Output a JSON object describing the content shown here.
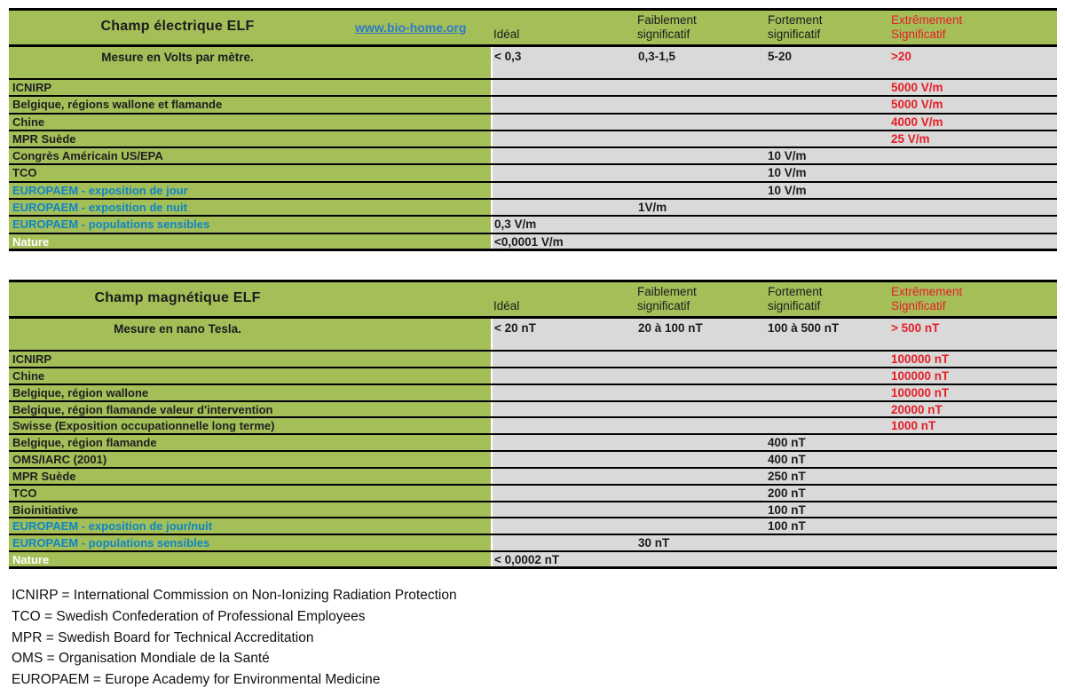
{
  "colors": {
    "header_green": "#A4BE58",
    "cell_gray": "#D9D9D9",
    "alert_red": "#E61E28",
    "europaem_blue": "#0E86C5",
    "link_blue": "#2B7CC6"
  },
  "tables": [
    {
      "title": "Champ électrique ELF",
      "link": "www.bio-home.org",
      "columns": [
        "Idéal",
        "Faiblement\nsignificatif",
        "Fortement\nsignificatif",
        "Extrêmement\nSignificatif"
      ],
      "measure": {
        "label": "Mesure en Volts par mètre.",
        "values": [
          "< 0,3",
          "0,3-1,5",
          "5-20",
          ">20"
        ]
      },
      "rows": [
        {
          "label": "ICNIRP",
          "value": "5000 V/m",
          "column": "extremement-significatif"
        },
        {
          "label": "Belgique, régions wallone et flamande",
          "value": "5000 V/m",
          "column": "extremement-significatif"
        },
        {
          "label": "Chine",
          "value": "4000 V/m",
          "column": "extremement-significatif"
        },
        {
          "label": "MPR Suède",
          "value": "25 V/m",
          "column": "extremement-significatif"
        },
        {
          "label": "Congrès Américain US/EPA",
          "value": "10 V/m",
          "column": "fortement-significatif"
        },
        {
          "label": "TCO",
          "value": "10 V/m",
          "column": "fortement-significatif"
        },
        {
          "label": "EUROPAEM - exposition de jour",
          "value": "10 V/m",
          "column": "fortement-significatif"
        },
        {
          "label": "EUROPAEM - exposition de nuit",
          "value": "1V/m",
          "column": "faiblement-significatif"
        },
        {
          "label": "EUROPAEM - populations sensibles",
          "value": "0,3 V/m",
          "column": "ideal"
        },
        {
          "label": "Nature",
          "value": "<0,0001 V/m",
          "column": "ideal"
        }
      ]
    },
    {
      "title": "Champ magnétique ELF",
      "columns": [
        "Idéal",
        "Faiblement\nsignificatif",
        "Fortement\nsignificatif",
        "Extrêmement\nSignificatif"
      ],
      "measure": {
        "label": "Mesure en nano Tesla.",
        "values": [
          "< 20 nT",
          "20 à 100 nT",
          "100 à 500 nT",
          "> 500 nT"
        ]
      },
      "rows": [
        {
          "label": "ICNIRP",
          "value": "100000 nT",
          "column": "extremement-significatif"
        },
        {
          "label": "Chine",
          "value": "100000 nT",
          "column": "extremement-significatif"
        },
        {
          "label": "Belgique, région wallone",
          "value": "100000 nT",
          "column": "extremement-significatif"
        },
        {
          "label": "Belgique, région flamande valeur d'intervention",
          "value": "20000 nT",
          "column": "extremement-significatif"
        },
        {
          "label": "Swisse  (Exposition occupationnelle long terme)",
          "value": "1000 nT",
          "column": "extremement-significatif"
        },
        {
          "label": "Belgique, région flamande",
          "value": "400 nT",
          "column": "fortement-significatif"
        },
        {
          "label": "OMS/IARC (2001)",
          "value": "400 nT",
          "column": "fortement-significatif"
        },
        {
          "label": "MPR Suède",
          "value": "250 nT",
          "column": "fortement-significatif"
        },
        {
          "label": "TCO",
          "value": "200 nT",
          "column": "fortement-significatif"
        },
        {
          "label": "Bioinitiative",
          "value": "100 nT",
          "column": "fortement-significatif"
        },
        {
          "label": "EUROPAEM - exposition de jour/nuit",
          "value": "100 nT",
          "column": "fortement-significatif"
        },
        {
          "label": "EUROPAEM - populations sensibles",
          "value": "30 nT",
          "column": "faiblement-significatif"
        },
        {
          "label": "Nature",
          "value": "< 0,0002 nT",
          "column": "ideal"
        }
      ]
    }
  ],
  "legend": [
    "ICNIRP = International Commission on Non-Ionizing Radiation Protection",
    "TCO = Swedish Confederation of Professional Employees",
    "MPR = Swedish Board for Technical Accreditation",
    "OMS = Organisation Mondiale de la Santé",
    "EUROPAEM = Europe Academy for Environmental Medicine"
  ]
}
